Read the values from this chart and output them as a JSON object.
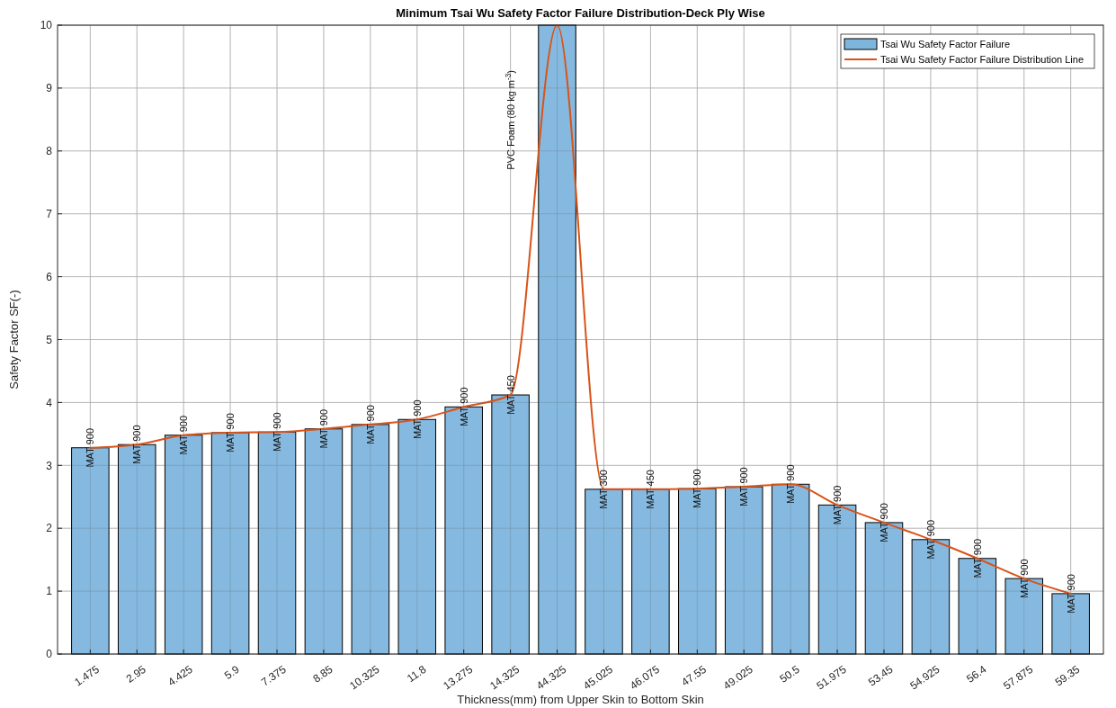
{
  "chart_data": {
    "type": "bar",
    "title": "Minimum Tsai Wu Safety Factor Failure Distribution-Deck Ply Wise",
    "xlabel": "Thickness(mm) from Upper Skin to Bottom Skin",
    "ylabel": "Safety Factor SF(-)",
    "categories": [
      "1.475",
      "2.95",
      "4.425",
      "5.9",
      "7.375",
      "8.85",
      "10.325",
      "11.8",
      "13.275",
      "14.325",
      "44.325",
      "45.025",
      "46.075",
      "47.55",
      "49.025",
      "50.5",
      "51.975",
      "53.45",
      "54.925",
      "56.4",
      "57.875",
      "59.35"
    ],
    "series": [
      {
        "name": "Tsai Wu Safety Factor Failure",
        "color": "#7eb5dd",
        "values": [
          3.28,
          3.33,
          3.48,
          3.52,
          3.53,
          3.58,
          3.65,
          3.73,
          3.93,
          4.12,
          10,
          2.62,
          2.62,
          2.63,
          2.66,
          2.7,
          2.37,
          2.09,
          1.82,
          1.52,
          1.2,
          0.96
        ]
      },
      {
        "name": "Tsai Wu Safety Factor Failure Distribution Line",
        "type": "line",
        "color": "#d95319",
        "values": [
          3.28,
          3.33,
          3.48,
          3.52,
          3.53,
          3.58,
          3.65,
          3.73,
          3.93,
          4.12,
          10,
          2.62,
          2.62,
          2.63,
          2.66,
          2.7,
          2.37,
          2.09,
          1.82,
          1.52,
          1.2,
          0.96
        ]
      }
    ],
    "ylim": [
      0,
      10
    ],
    "yticks": [
      0,
      1,
      2,
      3,
      4,
      5,
      6,
      7,
      8,
      9,
      10
    ],
    "grid": true,
    "legend": "top right",
    "annotations": [
      {
        "text": "MAT 900",
        "x": "1.475",
        "y": 3.28
      },
      {
        "text": "MAT 900",
        "x": "2.95",
        "y": 3.33
      },
      {
        "text": "MAT 900",
        "x": "4.425",
        "y": 3.48
      },
      {
        "text": "MAT 900",
        "x": "5.9",
        "y": 3.52
      },
      {
        "text": "MAT 900",
        "x": "7.375",
        "y": 3.53
      },
      {
        "text": "MAT 900",
        "x": "8.85",
        "y": 3.58
      },
      {
        "text": "MAT 900",
        "x": "10.325",
        "y": 3.65
      },
      {
        "text": "MAT 900",
        "x": "11.8",
        "y": 3.73
      },
      {
        "text": "MAT 900",
        "x": "13.275",
        "y": 3.93
      },
      {
        "text": "MAT 450",
        "x": "14.325",
        "y": 4.12
      },
      "PVC Foam (80 kg m$^{-3}$)",
      {
        "text": "MAT 300",
        "x": "45.025",
        "y": 2.62
      },
      {
        "text": "MAT 450",
        "x": "46.075",
        "y": 2.62
      },
      {
        "text": "MAT 900",
        "x": "47.55",
        "y": 2.63
      },
      {
        "text": "MAT 900",
        "x": "49.025",
        "y": 2.66
      },
      {
        "text": "MAT 900",
        "x": "50.5",
        "y": 2.7
      },
      {
        "text": "MAT 900",
        "x": "51.975",
        "y": 2.37
      },
      {
        "text": "MAT 900",
        "x": "53.45",
        "y": 2.09
      },
      {
        "text": "MAT 900",
        "x": "54.925",
        "y": 1.82
      },
      {
        "text": "MAT 900",
        "x": "56.4",
        "y": 1.52
      },
      {
        "text": "MAT 900",
        "x": "57.875",
        "y": 1.2
      },
      {
        "text": "MAT 900",
        "x": "59.35",
        "y": 0.96
      }
    ]
  }
}
